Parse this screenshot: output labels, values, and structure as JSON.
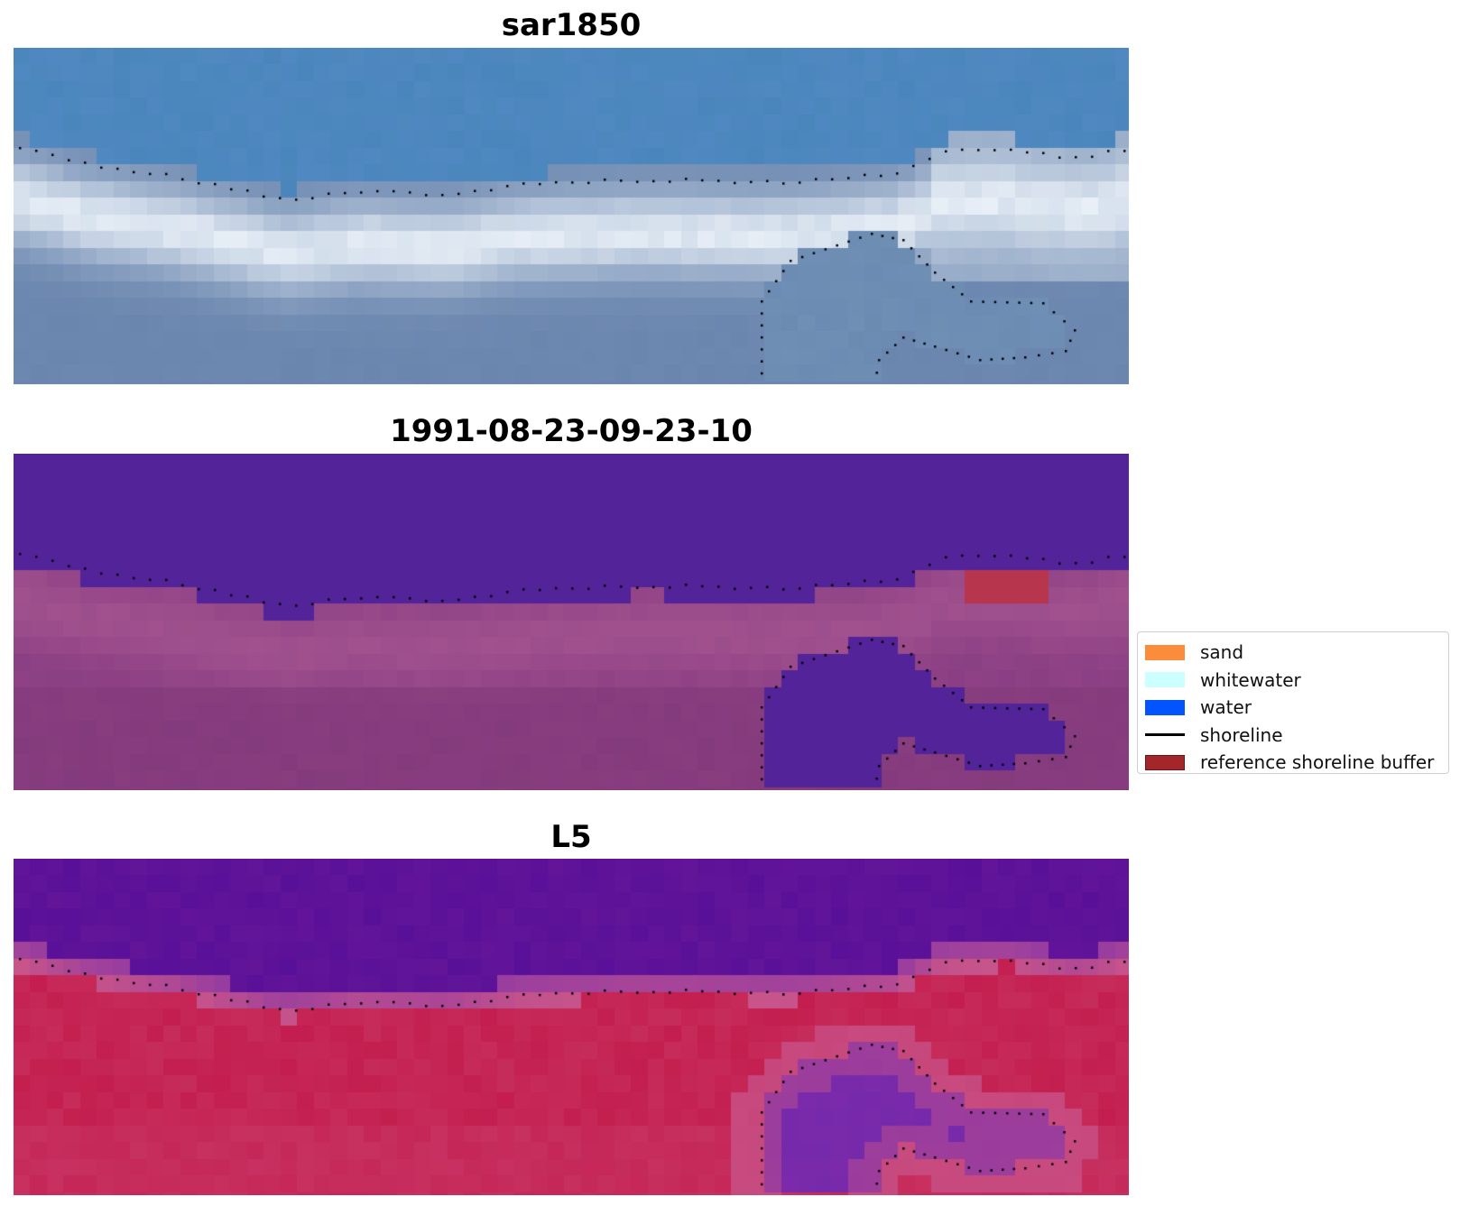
{
  "panels": [
    {
      "title": "sar1850",
      "style": "rgb",
      "colors": {
        "top": "#4a86bc",
        "whitewater": "#eef4fa",
        "lower": "#6b86ae",
        "embay": "#6e8eb4"
      }
    },
    {
      "title": "1991-08-23-09-23-10",
      "style": "classified",
      "colors": {
        "water": "#53239a",
        "land": "#8a3e83",
        "landLight": "#a55590",
        "buffer": "#b8354e"
      }
    },
    {
      "title": "L5",
      "style": "index",
      "colors": {
        "water": "#621599",
        "land": "#c31e4f",
        "halo": "#c8548a",
        "embay": "#7a2aab"
      }
    }
  ],
  "legend": {
    "items": [
      {
        "label": "sand",
        "type": "patch",
        "color": "#fb8c3b"
      },
      {
        "label": "whitewater",
        "type": "patch",
        "color": "#ccffff"
      },
      {
        "label": "water",
        "type": "patch",
        "color": "#0254ff"
      },
      {
        "label": "shoreline",
        "type": "line",
        "color": "#000000"
      },
      {
        "label": "reference shoreline buffer",
        "type": "patch",
        "color": "#a3262b"
      }
    ]
  }
}
